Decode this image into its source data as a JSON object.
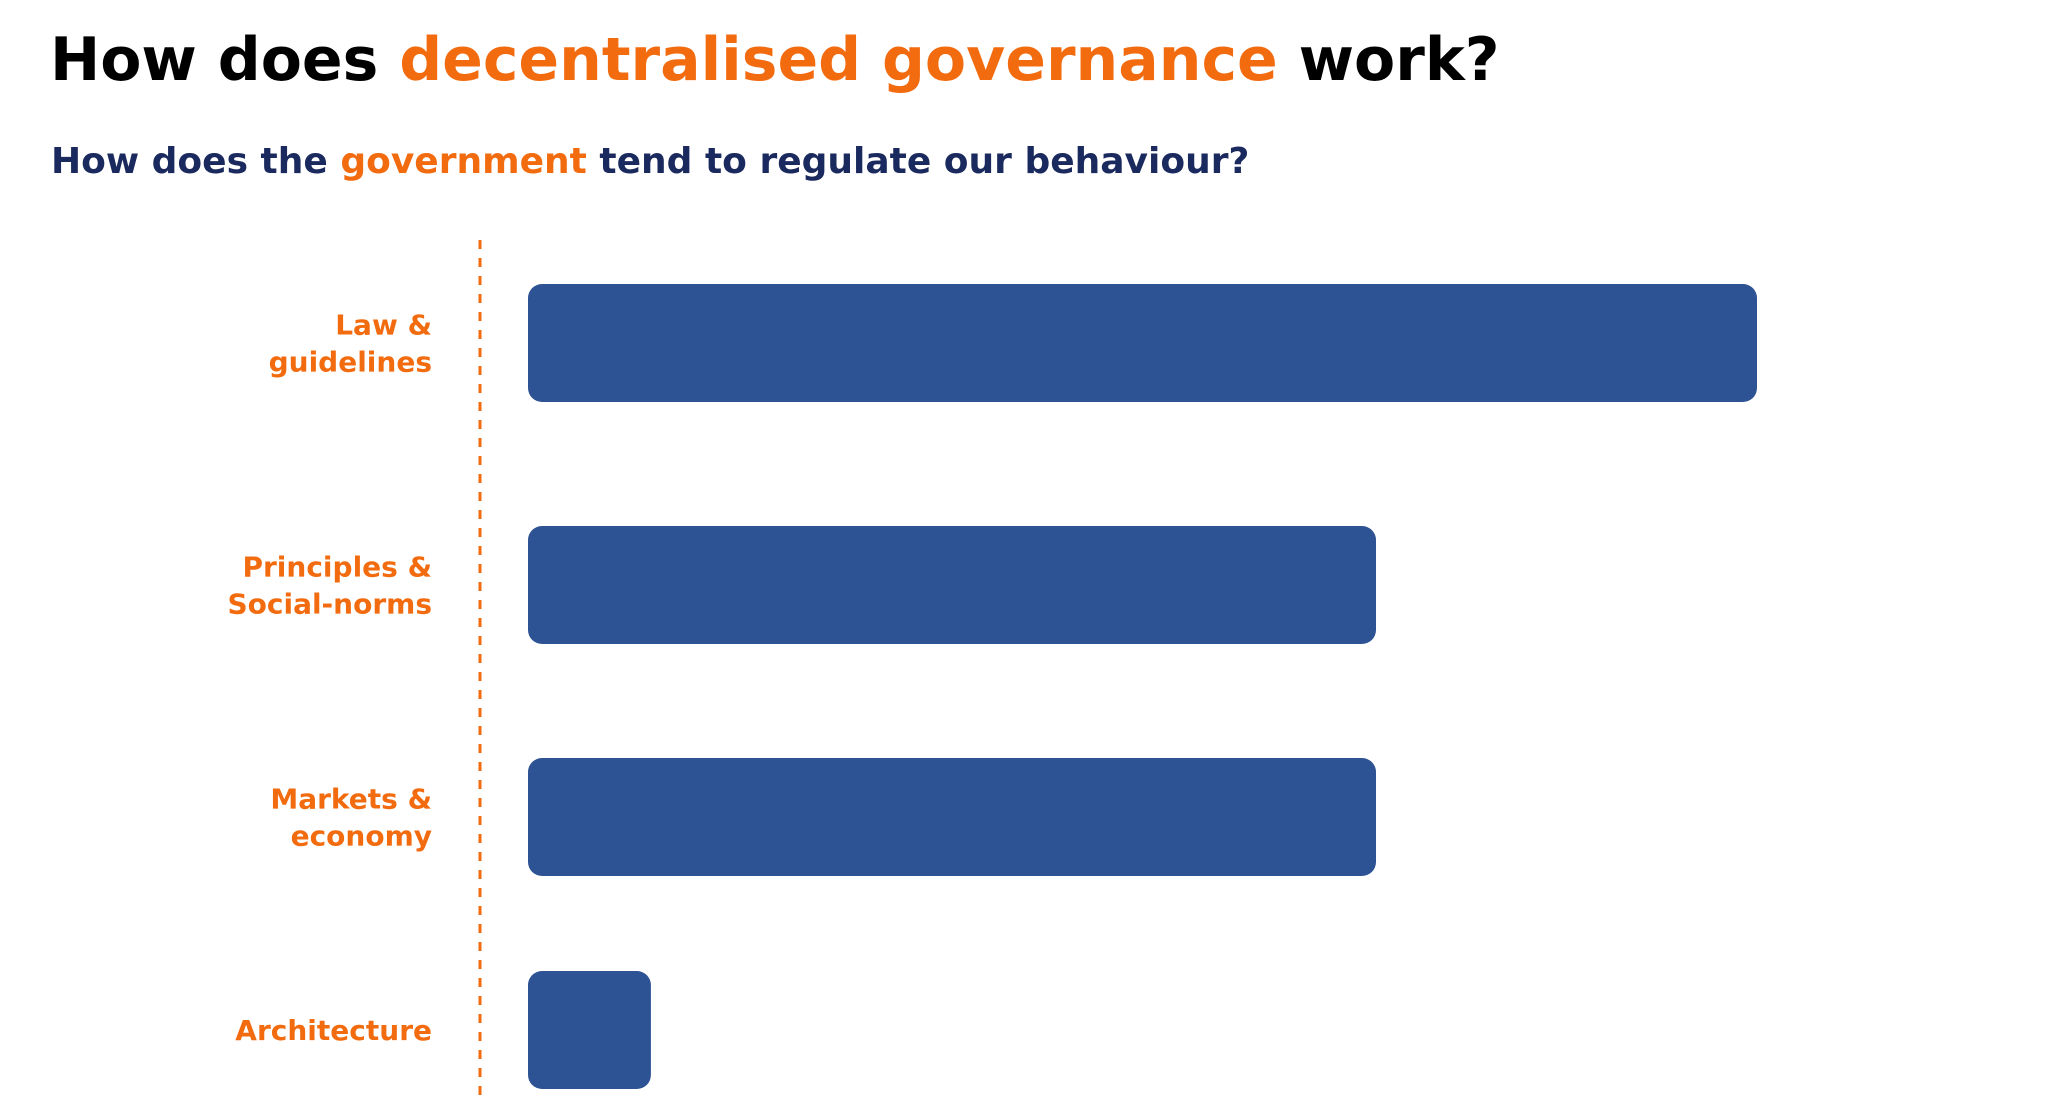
{
  "header": {
    "title_pre": "How does ",
    "title_accent": "decentralised governance",
    "title_post": " work?",
    "subtitle_pre": "How does the ",
    "subtitle_accent": "government",
    "subtitle_post": " tend to regulate our behaviour?"
  },
  "colors": {
    "accent": "#F26B0F",
    "bar": "#2E5395",
    "subtitle": "#1B2A5E",
    "title": "#000000",
    "axis": "#F26B0F"
  },
  "chart_data": {
    "type": "bar",
    "orientation": "horizontal",
    "title": "",
    "xlabel": "",
    "ylabel": "",
    "grid": false,
    "legend": "none",
    "axis_style": "dashed",
    "categories": [
      [
        "Law &",
        "guidelines"
      ],
      [
        "Principles &",
        "Social-norms"
      ],
      [
        "Markets &",
        "economy"
      ],
      [
        "Architecture"
      ]
    ],
    "values": [
      100,
      69,
      69,
      10
    ],
    "xlim": [
      0,
      100
    ]
  }
}
